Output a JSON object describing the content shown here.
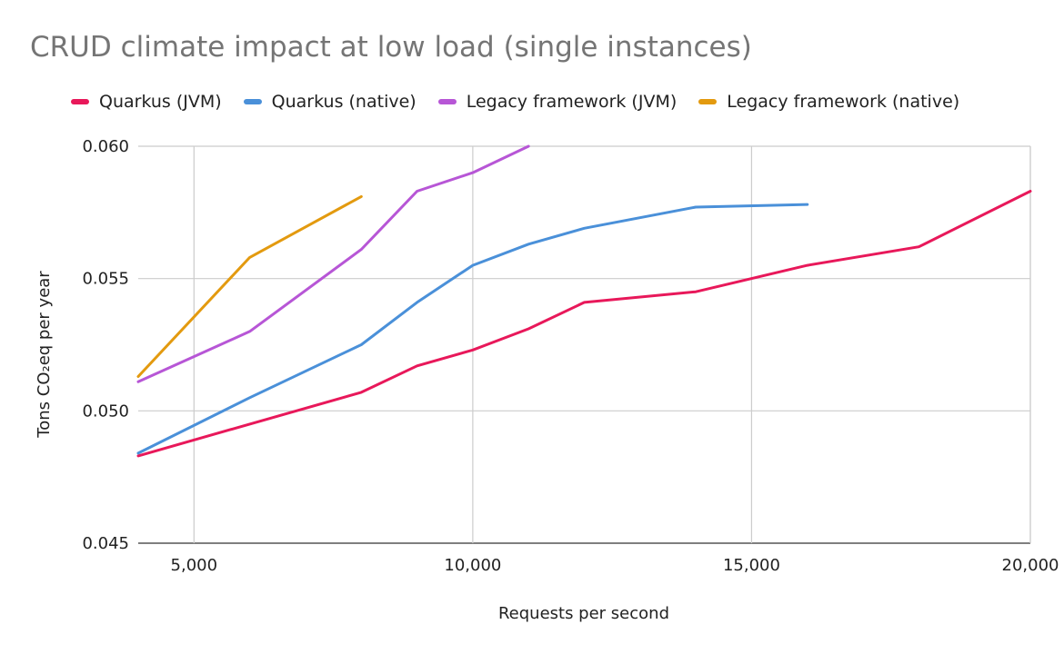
{
  "chart_data": {
    "type": "line",
    "title": "CRUD climate impact at low load (single instances)",
    "xlabel": "Requests per second",
    "ylabel": "Tons CO₂eq per year",
    "xlim": [
      4000,
      20000
    ],
    "ylim": [
      0.045,
      0.06
    ],
    "x_ticks": [
      {
        "value": 5000,
        "label": "5,000"
      },
      {
        "value": 10000,
        "label": "10,000"
      },
      {
        "value": 15000,
        "label": "15,000"
      },
      {
        "value": 20000,
        "label": "20,000"
      }
    ],
    "y_ticks": [
      {
        "value": 0.045,
        "label": "0.045"
      },
      {
        "value": 0.05,
        "label": "0.050"
      },
      {
        "value": 0.055,
        "label": "0.055"
      },
      {
        "value": 0.06,
        "label": "0.060"
      }
    ],
    "grid": true,
    "legend_position": "top",
    "series": [
      {
        "name": "Quarkus (JVM)",
        "color": "#e8185a",
        "points": [
          [
            4000,
            0.0483
          ],
          [
            6000,
            0.0495
          ],
          [
            8000,
            0.0507
          ],
          [
            9000,
            0.0517
          ],
          [
            10000,
            0.0523
          ],
          [
            11000,
            0.0531
          ],
          [
            12000,
            0.0541
          ],
          [
            14000,
            0.0545
          ],
          [
            16000,
            0.0555
          ],
          [
            18000,
            0.0562
          ],
          [
            20000,
            0.0583
          ]
        ]
      },
      {
        "name": "Quarkus (native)",
        "color": "#4a90d9",
        "points": [
          [
            4000,
            0.0484
          ],
          [
            6000,
            0.0505
          ],
          [
            8000,
            0.0525
          ],
          [
            9000,
            0.0541
          ],
          [
            10000,
            0.0555
          ],
          [
            11000,
            0.0563
          ],
          [
            12000,
            0.0569
          ],
          [
            14000,
            0.0577
          ],
          [
            16000,
            0.0578
          ]
        ]
      },
      {
        "name": "Legacy framework (JVM)",
        "color": "#b756d6",
        "points": [
          [
            4000,
            0.0511
          ],
          [
            6000,
            0.053
          ],
          [
            8000,
            0.0561
          ],
          [
            9000,
            0.0583
          ],
          [
            10000,
            0.059
          ],
          [
            11000,
            0.06
          ]
        ]
      },
      {
        "name": "Legacy framework (native)",
        "color": "#e39a0f",
        "points": [
          [
            4000,
            0.0513
          ],
          [
            6000,
            0.0558
          ],
          [
            8000,
            0.0581
          ]
        ]
      }
    ]
  }
}
